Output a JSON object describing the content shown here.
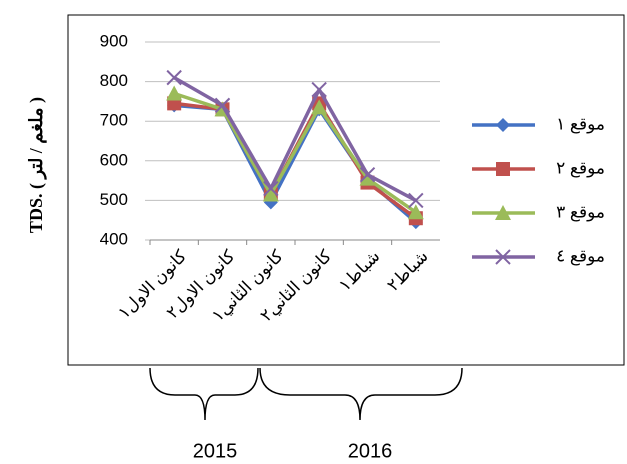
{
  "chart_data": {
    "type": "line",
    "y_label": "TDS. ( ملغم / لتر )",
    "categories": [
      "كانون الاول١",
      "كانون الاول٢",
      "كانون الثاني١",
      "كانون الثاني٢",
      "شباط١",
      "شباط٢"
    ],
    "series": [
      {
        "name": "موقع ١",
        "color": "#4472c4",
        "marker": "diamond",
        "values": [
          740,
          730,
          495,
          730,
          550,
          445
        ]
      },
      {
        "name": "موقع ٢",
        "color": "#c0504d",
        "marker": "square",
        "values": [
          745,
          730,
          515,
          745,
          545,
          455
        ]
      },
      {
        "name": "موقع ٣",
        "color": "#9bbb59",
        "marker": "triangle",
        "values": [
          770,
          730,
          515,
          735,
          555,
          470
        ]
      },
      {
        "name": "موقع ٤",
        "color": "#8064a2",
        "marker": "x",
        "values": [
          810,
          740,
          530,
          780,
          565,
          500
        ]
      }
    ],
    "ylim": [
      400,
      900
    ],
    "yticks": [
      400,
      500,
      600,
      700,
      800,
      900
    ],
    "grid": true,
    "legend": "right",
    "annotations": [
      "2015",
      "2016"
    ]
  }
}
